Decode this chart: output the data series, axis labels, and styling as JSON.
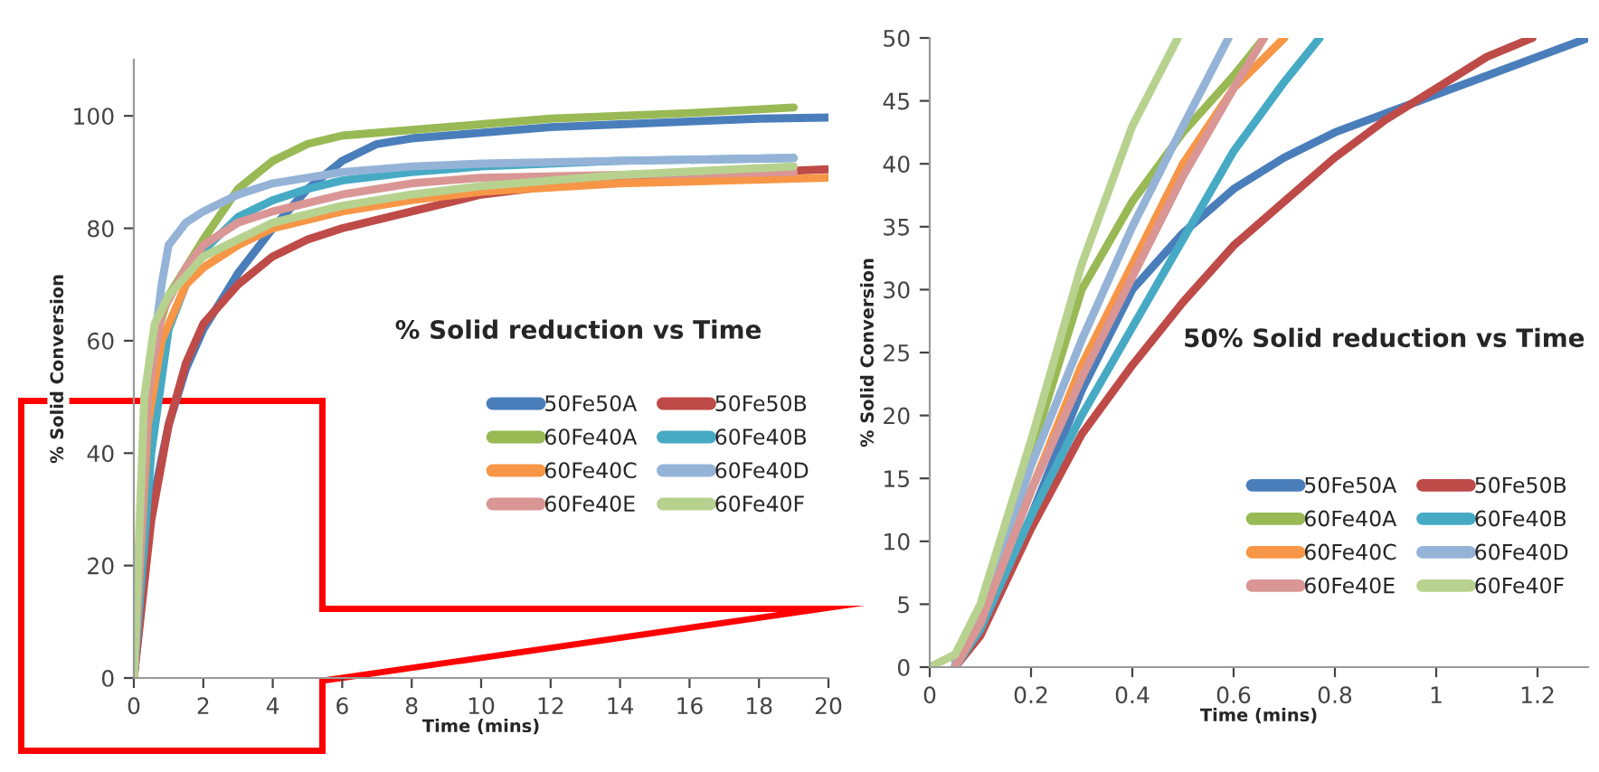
{
  "chart_data": [
    {
      "type": "line",
      "title": "% Solid reduction vs Time",
      "xlabel": "Time (mins)",
      "ylabel": "% Solid Conversion",
      "xlim": [
        0,
        20
      ],
      "ylim": [
        0,
        110
      ],
      "xticks": [
        0,
        2,
        4,
        6,
        8,
        10,
        12,
        14,
        16,
        18,
        20
      ],
      "yticks": [
        0,
        20,
        40,
        60,
        80,
        100
      ],
      "grid": false,
      "legend": "right",
      "marker": "none",
      "line_style": "solid",
      "series": [
        {
          "name": "50Fe50A",
          "color": "#4a7ebb",
          "x": [
            0,
            0.5,
            1,
            1.5,
            2,
            3,
            4,
            5,
            6,
            7,
            8,
            10,
            12,
            14,
            16,
            18,
            20
          ],
          "values": [
            0,
            30,
            45,
            55,
            62,
            72,
            80,
            87,
            92,
            95,
            96,
            97,
            98,
            98.5,
            99,
            99.5,
            99.7
          ]
        },
        {
          "name": "50Fe50B",
          "color": "#be4b48",
          "x": [
            0,
            0.5,
            1,
            1.5,
            2,
            3,
            4,
            5,
            6,
            8,
            10,
            12,
            14,
            16,
            18,
            20
          ],
          "values": [
            0,
            28,
            45,
            56,
            63,
            70,
            75,
            78,
            80,
            83,
            86,
            87.5,
            88.5,
            89,
            90,
            90.5
          ]
        },
        {
          "name": "60Fe40A",
          "color": "#98b954",
          "x": [
            0,
            0.3,
            0.6,
            1,
            2,
            3,
            4,
            5,
            6,
            8,
            10,
            12,
            14,
            16,
            19
          ],
          "values": [
            0,
            40,
            60,
            68,
            78,
            87,
            92,
            95,
            96.5,
            97.5,
            98.5,
            99.5,
            100,
            100.5,
            101.5
          ]
        },
        {
          "name": "60Fe40B",
          "color": "#46aac5",
          "x": [
            0,
            0.5,
            1,
            1.5,
            2,
            3,
            4,
            5,
            6,
            8,
            10,
            14,
            19
          ],
          "values": [
            0,
            40,
            62,
            70,
            76,
            82,
            85,
            87,
            88.5,
            90,
            91,
            92,
            92.5
          ]
        },
        {
          "name": "60Fe40C",
          "color": "#f79646",
          "x": [
            0,
            0.4,
            0.8,
            1.5,
            2,
            3,
            4,
            6,
            8,
            10,
            14,
            20
          ],
          "values": [
            0,
            45,
            60,
            70,
            73,
            77,
            80,
            83,
            85,
            86.5,
            88,
            89
          ]
        },
        {
          "name": "60Fe40D",
          "color": "#95b3d7",
          "x": [
            0,
            0.4,
            0.8,
            1,
            1.5,
            2,
            3,
            4,
            6,
            8,
            10,
            14,
            19
          ],
          "values": [
            0,
            50,
            70,
            77,
            81,
            83,
            86,
            88,
            90,
            91,
            91.5,
            92,
            92.5
          ]
        },
        {
          "name": "60Fe40E",
          "color": "#d99694",
          "x": [
            0,
            0.4,
            0.8,
            1.5,
            2,
            3,
            4,
            6,
            8,
            10,
            14,
            19
          ],
          "values": [
            0,
            50,
            65,
            73,
            77,
            81,
            83,
            86,
            88,
            89,
            89.5,
            90
          ]
        },
        {
          "name": "60Fe40F",
          "color": "#b7d28f",
          "x": [
            0,
            0.3,
            0.6,
            1,
            2,
            3,
            4,
            6,
            8,
            10,
            14,
            19
          ],
          "values": [
            0,
            50,
            63,
            68,
            75,
            78,
            81,
            84,
            86,
            87.5,
            89.5,
            91
          ]
        }
      ]
    },
    {
      "type": "line",
      "title": "50% Solid reduction vs Time",
      "xlabel": "Time (mins)",
      "ylabel": "% Solid Conversion",
      "xlim": [
        0,
        1.3
      ],
      "ylim": [
        0,
        50
      ],
      "xticks": [
        0,
        0.2,
        0.4,
        0.6,
        0.8,
        1,
        1.2
      ],
      "yticks": [
        0,
        5,
        10,
        15,
        20,
        25,
        30,
        35,
        40,
        45,
        50
      ],
      "grid": false,
      "legend": "lower right",
      "marker": "none",
      "line_style": "solid",
      "series": [
        {
          "name": "50Fe50A",
          "color": "#4a7ebb",
          "x": [
            0.05,
            0.1,
            0.2,
            0.3,
            0.4,
            0.5,
            0.6,
            0.7,
            0.8,
            0.9,
            1.0,
            1.1,
            1.2,
            1.3
          ],
          "values": [
            0,
            3,
            12,
            22,
            30,
            34.5,
            38,
            40.5,
            42.5,
            44,
            45.5,
            47,
            48.5,
            50
          ]
        },
        {
          "name": "50Fe50B",
          "color": "#be4b48",
          "x": [
            0.05,
            0.1,
            0.2,
            0.3,
            0.4,
            0.5,
            0.6,
            0.7,
            0.8,
            0.9,
            1.0,
            1.1,
            1.19
          ],
          "values": [
            0,
            2.5,
            11,
            18.5,
            24,
            29,
            33.5,
            37,
            40.5,
            43.5,
            46,
            48.5,
            50
          ]
        },
        {
          "name": "60Fe40A",
          "color": "#98b954",
          "x": [
            0.05,
            0.1,
            0.2,
            0.3,
            0.4,
            0.5,
            0.6,
            0.66
          ],
          "values": [
            0.5,
            4,
            17,
            30,
            37,
            42.5,
            47,
            50
          ]
        },
        {
          "name": "60Fe40B",
          "color": "#46aac5",
          "x": [
            0.05,
            0.1,
            0.2,
            0.3,
            0.4,
            0.5,
            0.6,
            0.7,
            0.77
          ],
          "values": [
            0,
            3,
            12,
            20,
            27,
            34,
            41,
            46.5,
            50
          ]
        },
        {
          "name": "60Fe40C",
          "color": "#f79646",
          "x": [
            0.05,
            0.1,
            0.2,
            0.3,
            0.4,
            0.5,
            0.6,
            0.7
          ],
          "values": [
            0,
            3.5,
            14,
            24,
            32,
            40,
            46,
            50
          ]
        },
        {
          "name": "60Fe40D",
          "color": "#95b3d7",
          "x": [
            0.05,
            0.1,
            0.2,
            0.3,
            0.4,
            0.5,
            0.59
          ],
          "values": [
            0.2,
            4,
            16,
            26,
            35,
            43,
            50
          ]
        },
        {
          "name": "60Fe40E",
          "color": "#d99694",
          "x": [
            0.05,
            0.1,
            0.2,
            0.3,
            0.4,
            0.5,
            0.6,
            0.66
          ],
          "values": [
            0,
            3.5,
            14,
            23,
            31,
            39,
            46,
            50
          ]
        },
        {
          "name": "60Fe40F",
          "color": "#b7d28f",
          "x": [
            0,
            0.05,
            0.1,
            0.2,
            0.3,
            0.4,
            0.49
          ],
          "values": [
            0,
            1,
            5,
            18,
            32,
            43,
            50
          ]
        }
      ]
    }
  ]
}
